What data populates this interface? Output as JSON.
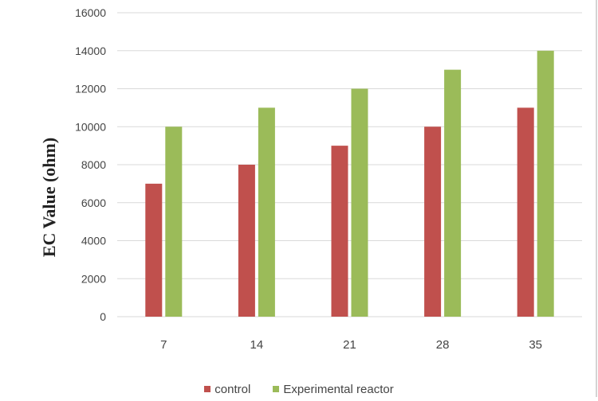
{
  "chart_data": {
    "type": "bar",
    "title": "",
    "xlabel": "",
    "ylabel": "EC Value (ohm)",
    "categories": [
      "7",
      "14",
      "21",
      "28",
      "35"
    ],
    "ylim": [
      0,
      16000
    ],
    "yticks": [
      "0",
      "2000",
      "4000",
      "6000",
      "8000",
      "10000",
      "12000",
      "14000",
      "16000"
    ],
    "grid": true,
    "legend_position": "bottom",
    "series": [
      {
        "name": "control",
        "color": "#c0504d",
        "values": [
          7000,
          8000,
          9000,
          10000,
          11000
        ]
      },
      {
        "name": "Experimental reactor",
        "color": "#9bbb59",
        "values": [
          10000,
          11000,
          12000,
          13000,
          14000
        ]
      }
    ]
  }
}
